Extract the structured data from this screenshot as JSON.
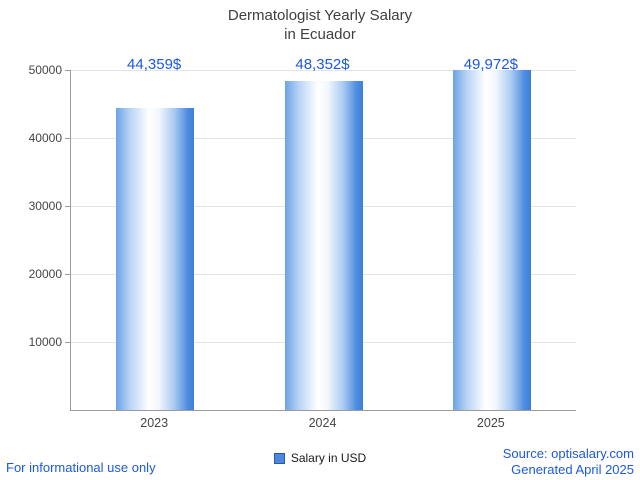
{
  "title": {
    "line1": "Dermatologist Yearly Salary",
    "line2": "in Ecuador"
  },
  "chart_data": {
    "type": "bar",
    "title": "Dermatologist Yearly Salary in Ecuador",
    "categories": [
      "2023",
      "2024",
      "2025"
    ],
    "values": [
      44359,
      48352,
      49972
    ],
    "value_labels": [
      "44,359$",
      "48,352$",
      "49,972$"
    ],
    "xlabel": "",
    "ylabel": "",
    "ylim": [
      0,
      50000
    ],
    "yticks": [
      10000,
      20000,
      30000,
      40000,
      50000
    ],
    "ytick_labels": [
      "10000",
      "20000",
      "30000",
      "40000",
      "50000"
    ],
    "grid": true,
    "legend": [
      "Salary in USD"
    ],
    "legend_position": "bottom"
  },
  "legend": {
    "label": "Salary in USD"
  },
  "footer": {
    "left": "For informational use only",
    "source": "Source: optisalary.com",
    "generated": "Generated April 2025"
  },
  "colors": {
    "accent_blue": "#1d59dd",
    "bar_edge": "#3f7fd8",
    "bar_center": "#ffffff",
    "legend_swatch": "#4d86e0",
    "axis": "#9b9b9b",
    "gridline": "#e4e4e4",
    "title_text": "#3f3f3f"
  }
}
